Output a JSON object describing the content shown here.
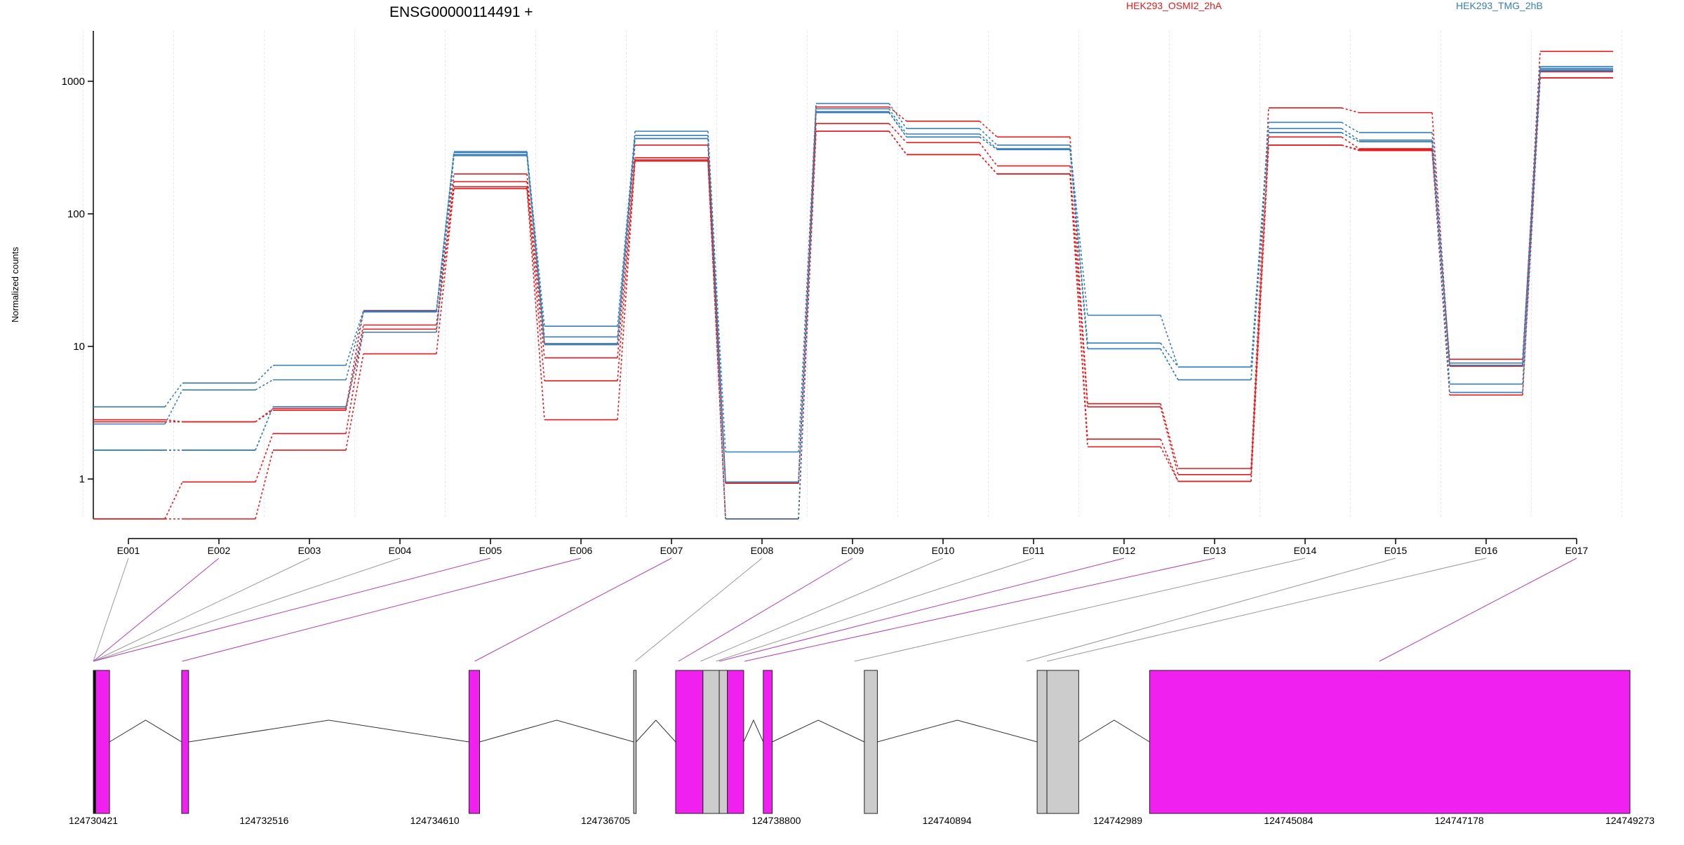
{
  "chart_data": {
    "type": "line",
    "title": "ENSG00000114491 +",
    "ylabel": "Normalized counts",
    "xlabel": "",
    "yscale": "log",
    "ylim": [
      0.5,
      2400
    ],
    "yticks": [
      1,
      10,
      100,
      1000
    ],
    "ytick_labels": [
      "1",
      "10",
      "100",
      "1000"
    ],
    "grid": "vertical-only",
    "legend_placement": "top-right",
    "categories": [
      "E001",
      "E002",
      "E003",
      "E004",
      "E005",
      "E006",
      "E007",
      "E008",
      "E009",
      "E010",
      "E011",
      "E012",
      "E013",
      "E014",
      "E015",
      "E016",
      "E017"
    ],
    "series": [
      {
        "name": "HEK293_OSMI2_2hA",
        "color": "#e41a1c",
        "values": [
          2.8,
          2.7,
          3.4,
          18.5,
          200,
          10.5,
          330,
          0.93,
          640,
          500,
          380,
          3.7,
          1.2,
          630,
          580,
          7.1,
          1680
        ]
      },
      {
        "name": "",
        "color": "#e41a1c",
        "values": [
          2.7,
          2.7,
          3.3,
          14.5,
          175,
          8.2,
          265,
          0.93,
          480,
          345,
          230,
          3.5,
          1.08,
          380,
          310,
          8.0,
          1180
        ]
      },
      {
        "name": "",
        "color": "#e41a1c",
        "values": [
          0.5,
          0.95,
          2.2,
          13.5,
          160,
          5.5,
          255,
          0.5,
          420,
          280,
          200,
          2.0,
          0.96,
          330,
          305,
          7.2,
          1060
        ]
      },
      {
        "name": "",
        "color": "#e41a1c",
        "values": [
          0.5,
          0.5,
          1.65,
          8.8,
          155,
          2.8,
          250,
          0.5,
          420,
          280,
          200,
          1.75,
          0.96,
          330,
          300,
          4.3,
          1060
        ]
      },
      {
        "name": "HEK293_TMG_2hB",
        "color": "#377eb8",
        "values": [
          3.5,
          5.3,
          7.2,
          18.7,
          295,
          14.2,
          420,
          1.6,
          680,
          440,
          330,
          17.2,
          7.0,
          490,
          410,
          7.5,
          1290
        ]
      },
      {
        "name": "",
        "color": "#377eb8",
        "values": [
          2.6,
          4.7,
          5.6,
          18.2,
          290,
          11.8,
          390,
          0.95,
          620,
          400,
          310,
          10.6,
          7.0,
          440,
          360,
          7.2,
          1250
        ]
      },
      {
        "name": "",
        "color": "#377eb8",
        "values": [
          1.65,
          1.65,
          3.5,
          12.8,
          280,
          10.5,
          370,
          0.95,
          590,
          380,
          305,
          9.6,
          5.6,
          410,
          350,
          5.2,
          1220
        ]
      },
      {
        "name": "",
        "color": "#377eb8",
        "values": [
          1.65,
          1.65,
          3.5,
          12.8,
          275,
          10.3,
          370,
          0.5,
          580,
          380,
          305,
          9.6,
          5.6,
          410,
          350,
          4.5,
          1200
        ]
      }
    ],
    "gene_model": {
      "coordinate_labels": [
        "124730421",
        "124732516",
        "124734610",
        "124736705",
        "124738800",
        "124740894",
        "124742989",
        "124745084",
        "124747178",
        "124749273"
      ],
      "coordinate_values": [
        124730421,
        124732516,
        124734610,
        124736705,
        124738800,
        124740894,
        124742989,
        124745084,
        124747178,
        124749273
      ],
      "exons": [
        {
          "id": "E001",
          "start": 124730421,
          "end": 124730450,
          "color": "#000000"
        },
        {
          "id": "E002",
          "start": 124730450,
          "end": 124730620,
          "color": "#f020f0"
        },
        {
          "id": "E003",
          "start": 124731505,
          "end": 124731590,
          "color": "#f020f0"
        },
        {
          "id": "E004",
          "start": 124735030,
          "end": 124735160,
          "color": "#f020f0"
        },
        {
          "id": "E005",
          "start": 124737050,
          "end": 124737080,
          "color": "#cccccc"
        },
        {
          "id": "E006",
          "start": 124737565,
          "end": 124737900,
          "color": "#f020f0"
        },
        {
          "id": "E007",
          "start": 124737900,
          "end": 124738100,
          "color": "#cccccc"
        },
        {
          "id": "E008",
          "start": 124738100,
          "end": 124738200,
          "color": "#cccccc"
        },
        {
          "id": "E009",
          "start": 124738200,
          "end": 124738400,
          "color": "#f020f0"
        },
        {
          "id": "E010",
          "start": 124738640,
          "end": 124738750,
          "color": "#f020f0"
        },
        {
          "id": "E011",
          "start": 124739880,
          "end": 124740040,
          "color": "#cccccc"
        },
        {
          "id": "E012",
          "start": 124742000,
          "end": 124742120,
          "color": "#cccccc"
        },
        {
          "id": "E013",
          "start": 124742120,
          "end": 124742510,
          "color": "#cccccc"
        },
        {
          "id": "E014",
          "start": 124743380,
          "end": 124749273,
          "color": "#f020f0"
        }
      ],
      "introns": [
        [
          124730620,
          124731505
        ],
        [
          124731590,
          124735030
        ],
        [
          124735160,
          124737050
        ],
        [
          124737080,
          124737565
        ],
        [
          124738400,
          124738640
        ],
        [
          124738750,
          124739880
        ],
        [
          124740040,
          124742000
        ],
        [
          124742510,
          124743380
        ]
      ],
      "connectors": [
        {
          "label": "E001",
          "genome": 124730421,
          "color": "#999999"
        },
        {
          "label": "E002",
          "genome": 124730421,
          "color": "#b040b0"
        },
        {
          "label": "E003",
          "genome": 124730421,
          "color": "#999999"
        },
        {
          "label": "E004",
          "genome": 124730421,
          "color": "#999999"
        },
        {
          "label": "E005",
          "genome": 124730421,
          "color": "#b040b0"
        },
        {
          "label": "E006",
          "genome": 124731510,
          "color": "#b040b0"
        },
        {
          "label": "E007",
          "genome": 124735100,
          "color": "#b040b0"
        },
        {
          "label": "E008",
          "genome": 124737070,
          "color": "#999999"
        },
        {
          "label": "E009",
          "genome": 124737600,
          "color": "#b040b0"
        },
        {
          "label": "E010",
          "genome": 124737870,
          "color": "#999999"
        },
        {
          "label": "E011",
          "genome": 124738060,
          "color": "#999999"
        },
        {
          "label": "E012",
          "genome": 124738100,
          "color": "#b040b0"
        },
        {
          "label": "E013",
          "genome": 124738410,
          "color": "#b040b0"
        },
        {
          "label": "E014",
          "genome": 124739760,
          "color": "#999999"
        },
        {
          "label": "E015",
          "genome": 124741870,
          "color": "#999999"
        },
        {
          "label": "E016",
          "genome": 124742120,
          "color": "#999999"
        },
        {
          "label": "E017",
          "genome": 124746200,
          "color": "#b040b0"
        }
      ]
    }
  }
}
